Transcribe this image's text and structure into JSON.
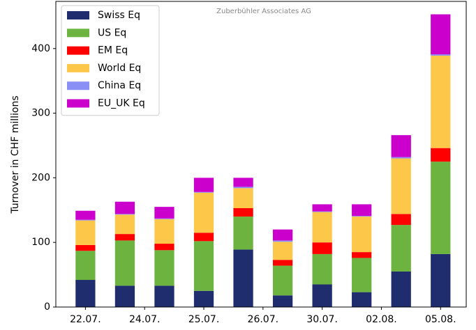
{
  "chart_data": {
    "type": "stacked_bar",
    "annotation": "Zuberbühler Associates AG",
    "y_label": "Turnover in CHF millions",
    "x": [
      0,
      1,
      2,
      3,
      4,
      5,
      6,
      7,
      8,
      9
    ],
    "xlim": [
      -0.75,
      9.65
    ],
    "xticks": [
      {
        "value": 0,
        "label": "22.07."
      },
      {
        "value": 1.5,
        "label": "24.07."
      },
      {
        "value": 3,
        "label": "25.07."
      },
      {
        "value": 4.5,
        "label": "26.07."
      },
      {
        "value": 6,
        "label": "30.07."
      },
      {
        "value": 7.5,
        "label": "02.08."
      },
      {
        "value": 9,
        "label": "05.08."
      }
    ],
    "ylim": [
      0,
      473
    ],
    "yticks": [
      0,
      100,
      200,
      300,
      400
    ],
    "legend": "upper left",
    "series": [
      {
        "name": "Swiss Eq",
        "color": "#1f2d6e",
        "values": [
          42,
          33,
          33,
          25,
          89,
          18,
          35,
          23,
          55,
          82
        ]
      },
      {
        "name": "US Eq",
        "color": "#6db33f",
        "values": [
          45,
          70,
          55,
          77,
          51,
          46,
          47,
          53,
          72,
          143
        ]
      },
      {
        "name": "EM Eq",
        "color": "#ff0000",
        "values": [
          9,
          10,
          10,
          13,
          13,
          9,
          18,
          9,
          17,
          21
        ]
      },
      {
        "name": "World Eq",
        "color": "#fdc84a",
        "values": [
          38,
          30,
          38,
          62,
          31,
          28,
          47,
          55,
          86,
          143
        ]
      },
      {
        "name": "China Eq",
        "color": "#8a8ff5",
        "values": [
          1,
          1,
          1,
          1,
          2,
          2,
          1,
          1,
          2,
          2
        ]
      },
      {
        "name": "EU_UK Eq",
        "color": "#cc00cc",
        "values": [
          14,
          19,
          18,
          22,
          14,
          17,
          11,
          18,
          34,
          62
        ]
      }
    ]
  }
}
